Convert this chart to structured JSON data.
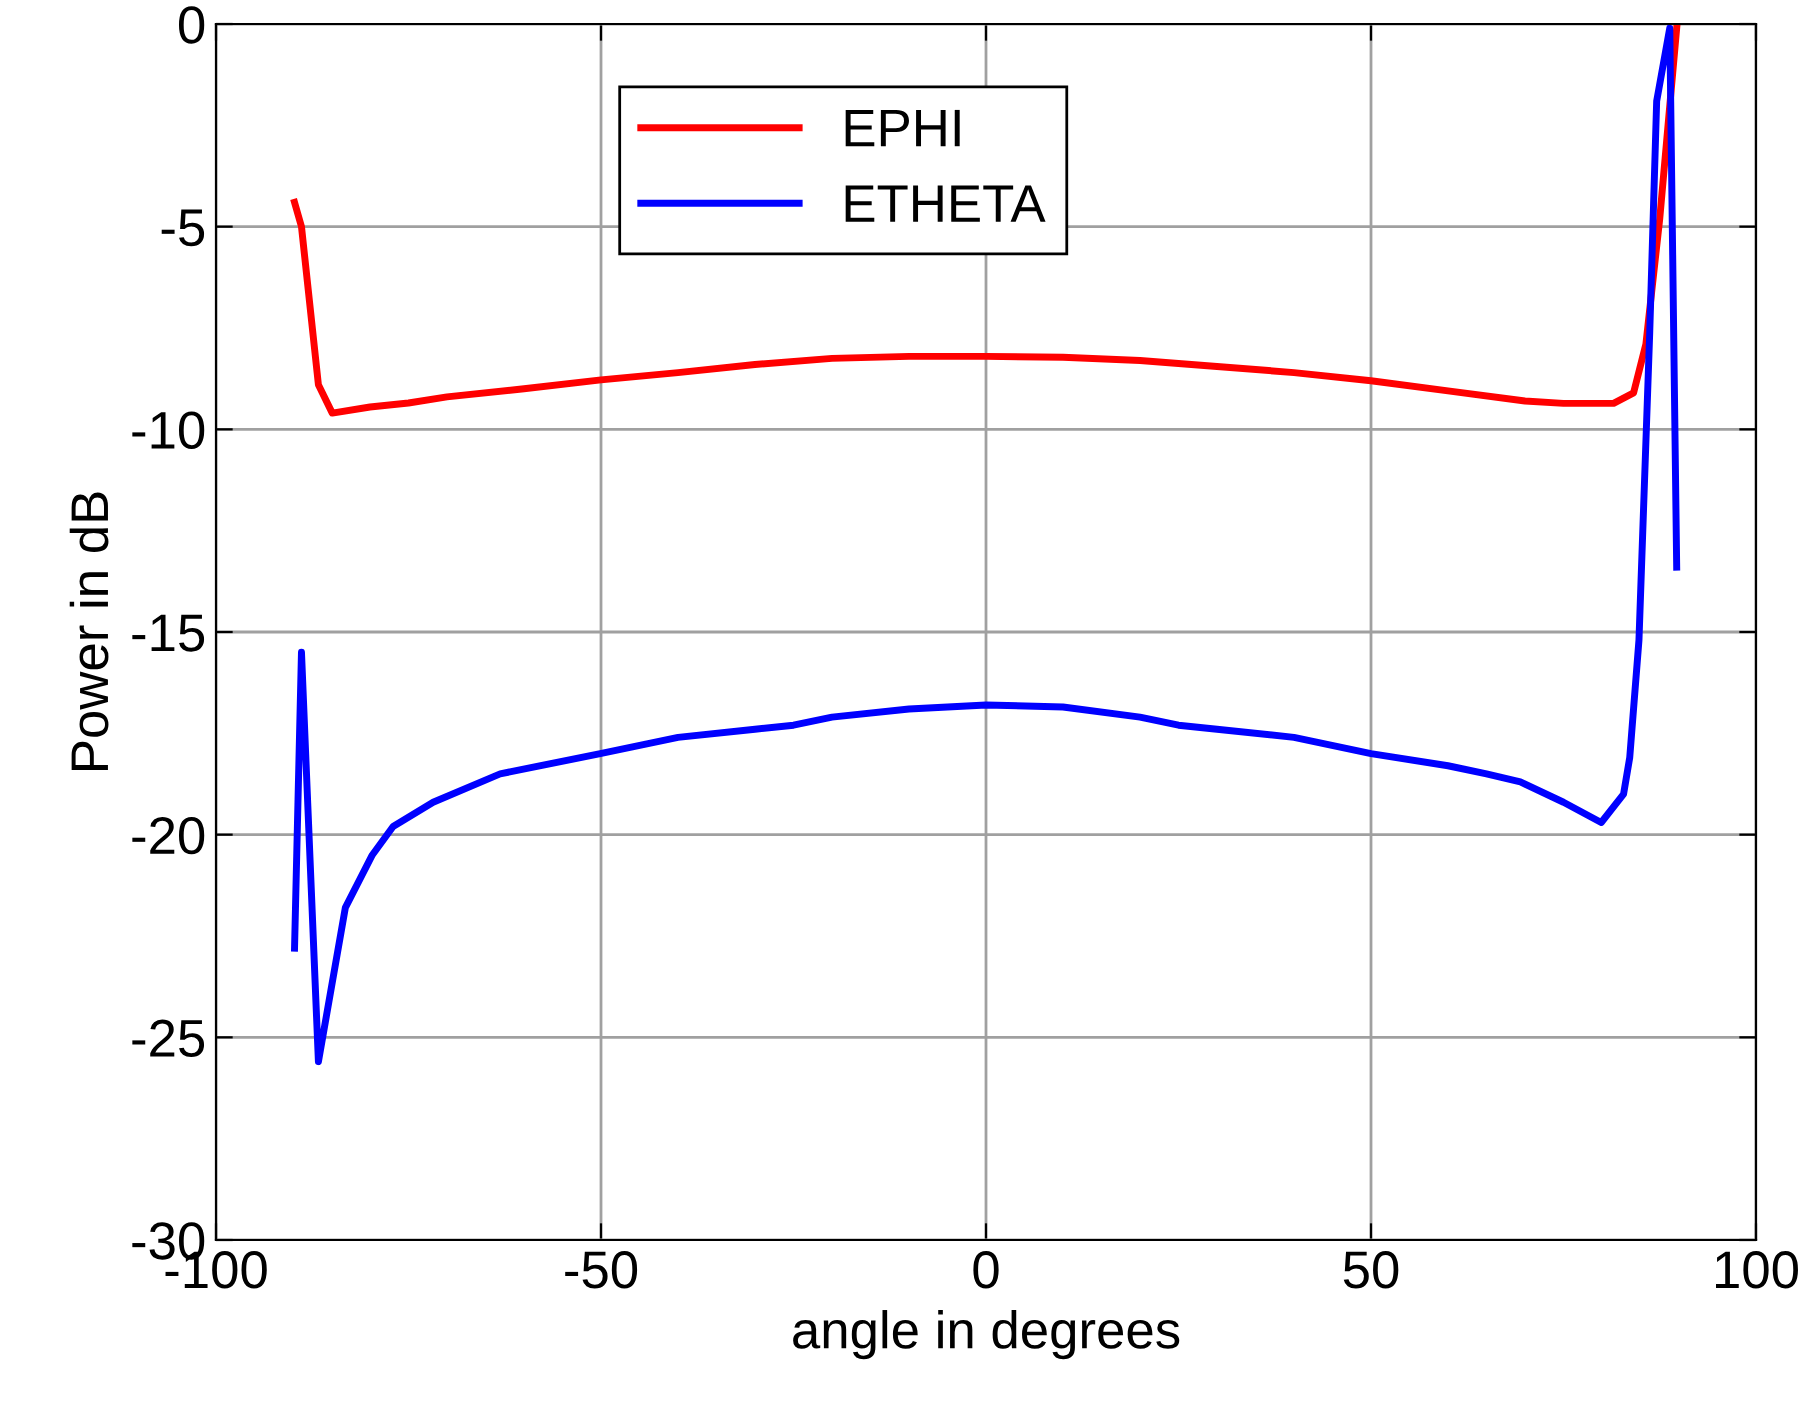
{
  "chart_data": {
    "type": "line",
    "xlabel": "angle in degrees",
    "ylabel": "Power in dB",
    "xlim": [
      -100,
      100
    ],
    "ylim": [
      -30,
      0
    ],
    "xticks": [
      -100,
      -50,
      0,
      50,
      100
    ],
    "yticks": [
      -30,
      -25,
      -20,
      -15,
      -10,
      -5,
      0
    ],
    "grid": true,
    "legend": "top",
    "line_style": "solid",
    "marker": "none",
    "series": [
      {
        "name": "EPHI",
        "color": "#ff0000",
        "x": [
          -89.8,
          -88.9,
          -86.7,
          -84.9,
          -80,
          -75,
          -70,
          -60,
          -50,
          -40,
          -30,
          -20,
          -10,
          0,
          10,
          20,
          30,
          40,
          50,
          60,
          70,
          75,
          81.5,
          84.1,
          85.7,
          87.5,
          89.7
        ],
        "values": [
          -4.4,
          -5.0,
          -8.9,
          -9.6,
          -9.45,
          -9.35,
          -9.2,
          -9.0,
          -8.78,
          -8.6,
          -8.4,
          -8.25,
          -8.2,
          -8.2,
          -8.22,
          -8.3,
          -8.45,
          -8.6,
          -8.8,
          -9.05,
          -9.3,
          -9.36,
          -9.36,
          -9.1,
          -7.9,
          -4.8,
          -0.1
        ]
      },
      {
        "name": "ETHETA",
        "color": "#0000ff",
        "x": [
          -89.8,
          -88.9,
          -86.7,
          -83.2,
          -79.7,
          -77,
          -71.8,
          -63.1,
          -50.1,
          -40,
          -30,
          -25,
          -20,
          -10,
          0,
          10,
          20,
          25,
          30,
          40,
          50,
          60,
          65,
          69.4,
          75,
          79.9,
          82.8,
          83.6,
          84.8,
          86.2,
          87.1,
          88.8,
          89.7
        ],
        "values": [
          -22.8,
          -15.5,
          -25.6,
          -21.8,
          -20.5,
          -19.8,
          -19.2,
          -18.5,
          -18.0,
          -17.6,
          -17.4,
          -17.3,
          -17.1,
          -16.9,
          -16.8,
          -16.85,
          -17.1,
          -17.3,
          -17.4,
          -17.6,
          -18.0,
          -18.3,
          -18.5,
          -18.7,
          -19.2,
          -19.7,
          -19.0,
          -18.1,
          -15.2,
          -7.6,
          -1.9,
          -0.1,
          -13.4
        ]
      }
    ]
  }
}
